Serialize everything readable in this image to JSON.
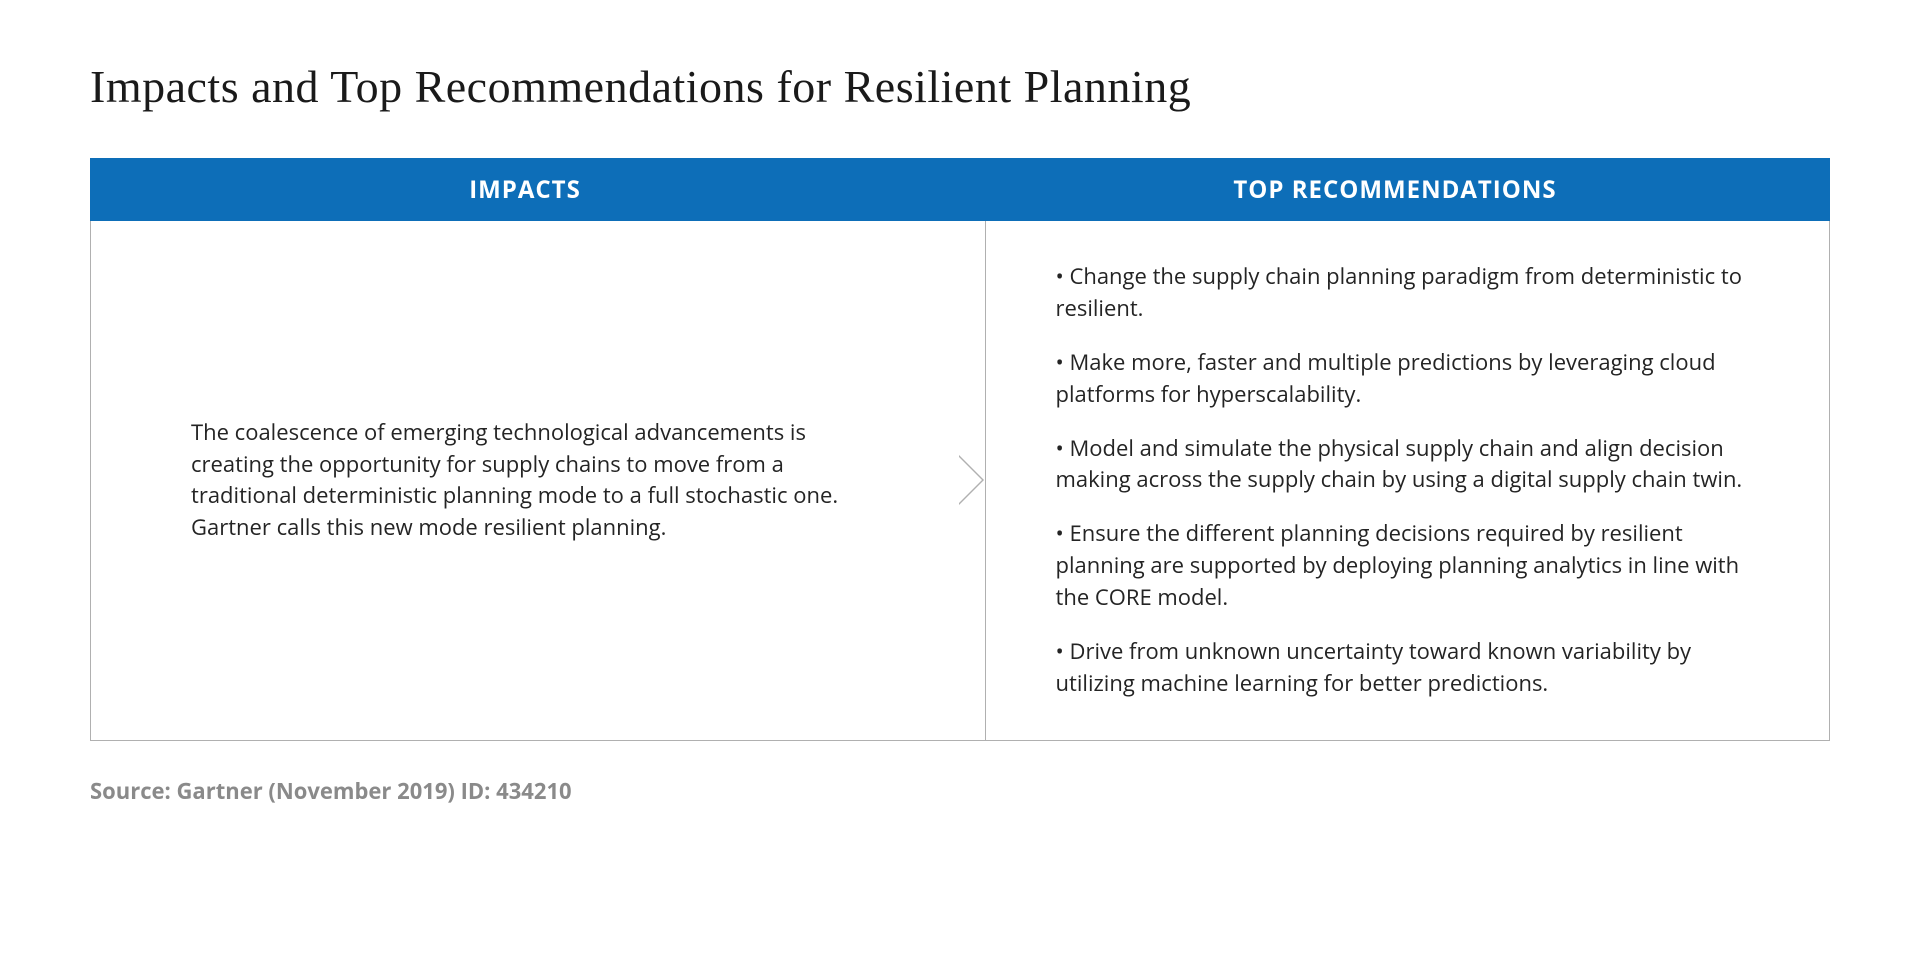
{
  "title": "Impacts and Top Recommendations for Resilient Planning",
  "headers": {
    "impacts": "IMPACTS",
    "recommendations": "TOP RECOMMENDATIONS"
  },
  "impacts_text": "The coalescence of emerging technological advancements is creating the opportunity for supply chains to move from a traditional deterministic planning mode to a full stochastic one. Gartner calls this new mode resilient planning.",
  "recommendations": [
    "• Change the supply chain planning paradigm from deterministic to resilient.",
    "• Make more, faster and multiple predictions by leveraging cloud platforms for hyperscalability.",
    "• Model and simulate the physical supply chain and align decision making across the supply chain by using a digital supply chain twin.",
    "• Ensure the different planning decisions required by resilient planning are supported by deploying planning analytics in line with the CORE model.",
    "• Drive from unknown uncertainty toward known variability by utilizing machine learning for better predictions."
  ],
  "source": "Source: Gartner (November 2019) ID: 434210",
  "colors": {
    "header_bg": "#0d6eb8",
    "header_text": "#ffffff",
    "border": "#b0b0b0",
    "body_text": "#242424",
    "title_text": "#1a1a1a",
    "source_text": "#8a8a8a",
    "background": "#ffffff"
  },
  "typography": {
    "title_fontsize": 46,
    "title_family": "serif",
    "header_fontsize": 24,
    "header_weight": 700,
    "body_fontsize": 22,
    "source_fontsize": 22,
    "source_weight": 700
  },
  "layout": {
    "type": "table",
    "columns": 2,
    "page_padding": "60px 90px",
    "cell_padding_impacts": "40px 90px 40px 100px",
    "cell_padding_recommendations": "40px 70px"
  }
}
